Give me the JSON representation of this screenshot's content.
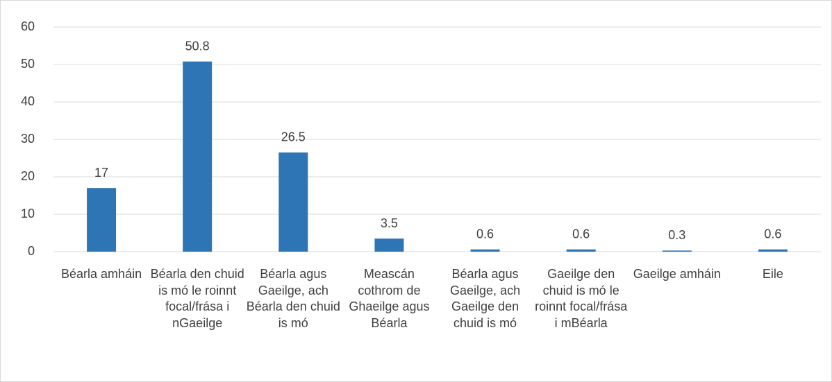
{
  "chart_data": {
    "type": "bar",
    "categories": [
      "Béarla amháin",
      "Béarla den chuid is mó le roinnt focal/frása i nGaeilge",
      "Béarla agus Gaeilge, ach Béarla den chuid is mó",
      "Meascán cothrom de Ghaeilge agus Béarla",
      "Béarla agus Gaeilge, ach Gaeilge den chuid is mó",
      "Gaeilge den chuid is mó le roinnt focal/frása i mBéarla",
      "Gaeilge amháin",
      "Eile"
    ],
    "values": [
      17,
      50.8,
      26.5,
      3.5,
      0.6,
      0.6,
      0.3,
      0.6
    ],
    "color": "#2e75b6",
    "ylim": [
      0,
      60
    ],
    "yticks": [
      0,
      10,
      20,
      30,
      40,
      50,
      60
    ],
    "grid": true
  }
}
